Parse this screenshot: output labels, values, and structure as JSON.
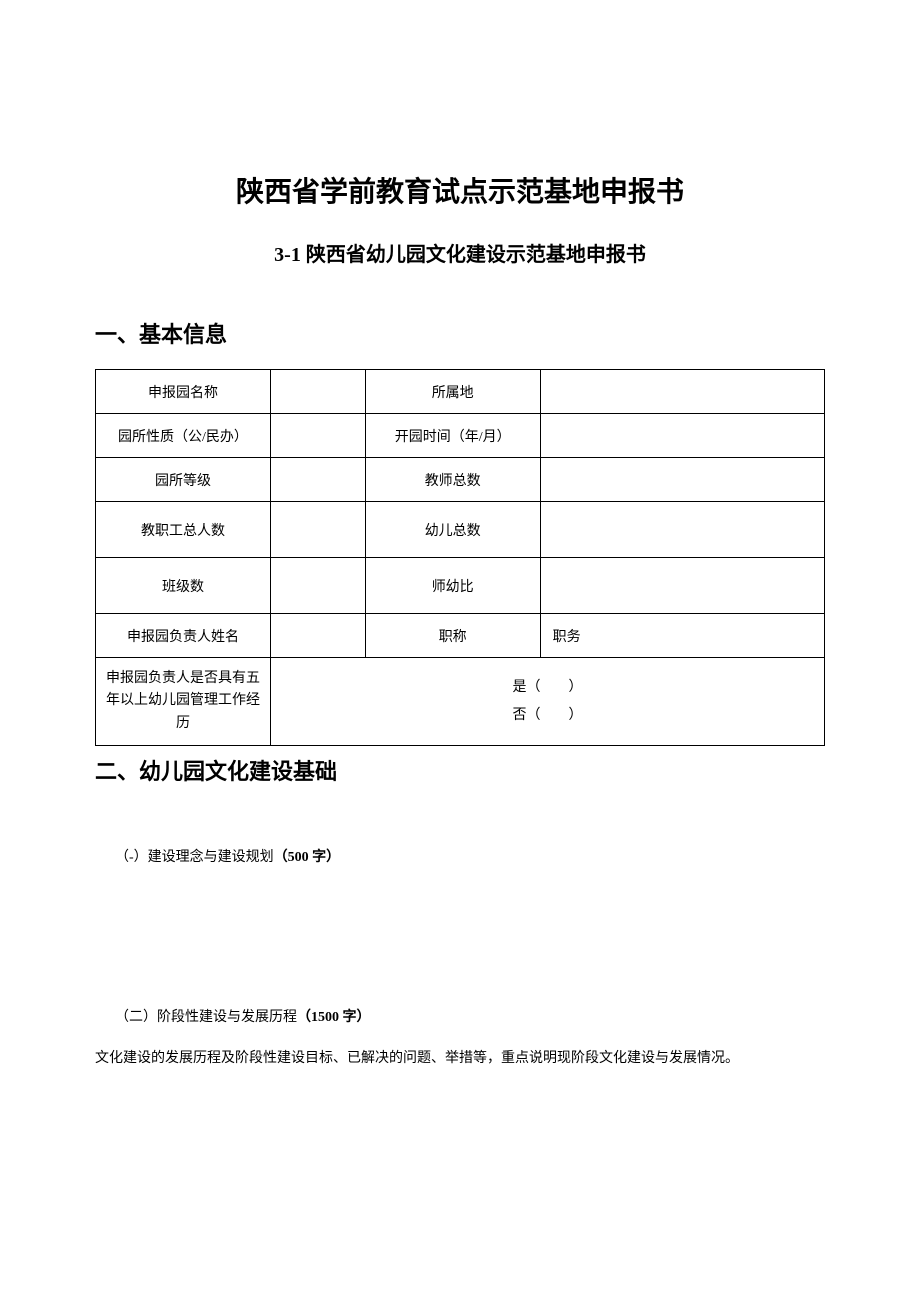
{
  "title": "陕西省学前教育试点示范基地申报书",
  "subtitle": "3-1 陕西省幼儿园文化建设示范基地申报书",
  "section1": {
    "header": "一、基本信息",
    "table": {
      "row1": {
        "label1": "申报园名称",
        "value1": "",
        "label2": "所属地",
        "value2": ""
      },
      "row2": {
        "label1": "园所性质（公/民办）",
        "value1": "",
        "label2": "开园时间（年/月）",
        "value2": ""
      },
      "row3": {
        "label1": "园所等级",
        "value1": "",
        "label2": "教师总数",
        "value2": ""
      },
      "row4": {
        "label1": "教职工总人数",
        "value1": "",
        "label2": "幼儿总数",
        "value2": ""
      },
      "row5": {
        "label1": "班级数",
        "value1": "",
        "label2": "师幼比",
        "value2": ""
      },
      "row6": {
        "label1": "申报园负责人姓名",
        "value1": "",
        "label2": "职称",
        "label3": "职务"
      },
      "row7": {
        "label1": "申报园负责人是否具有五年以上幼儿园管理工作经历",
        "yes": "是（　　）",
        "no": "否（　　）"
      }
    }
  },
  "section2": {
    "header": "二、幼儿园文化建设基础",
    "item1": {
      "prefix": "（-）建设理念与建设规划",
      "bold": "（500 字）"
    },
    "item2": {
      "prefix": "（二）阶段性建设与发展历程",
      "bold": "（1500 字）"
    },
    "desc": "文化建设的发展历程及阶段性建设目标、已解决的问题、举措等，重点说明现阶段文化建设与发展情况。"
  }
}
